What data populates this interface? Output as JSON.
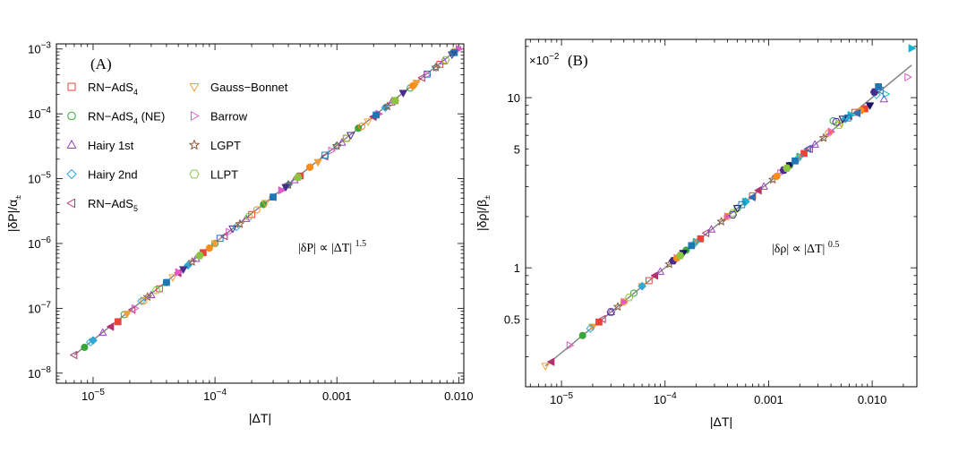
{
  "chart_data": [
    {
      "type": "scatter",
      "panel_label": "(A)",
      "xlabel": "|ΔT|",
      "ylabel": "|δP|/α±",
      "xscale": "log",
      "yscale": "log",
      "xlim": [
        5e-06,
        0.011
      ],
      "ylim": [
        7e-09,
        0.0012
      ],
      "x_ticks": [
        {
          "v": 1e-05,
          "b": "10",
          "e": "−5"
        },
        {
          "v": 0.0001,
          "b": "10",
          "e": "−4"
        },
        {
          "v": 0.001,
          "b": "0.001",
          "e": ""
        },
        {
          "v": 0.01,
          "b": "0.010",
          "e": ""
        }
      ],
      "y_ticks": [
        {
          "v": 1e-08,
          "b": "10",
          "e": "−8"
        },
        {
          "v": 1e-07,
          "b": "10",
          "e": "−7"
        },
        {
          "v": 1e-06,
          "b": "10",
          "e": "−6"
        },
        {
          "v": 1e-05,
          "b": "10",
          "e": "−5"
        },
        {
          "v": 0.0001,
          "b": "10",
          "e": "−4"
        },
        {
          "v": 0.001,
          "b": "10",
          "e": "−3"
        }
      ],
      "annotation": {
        "a": "|δP| ∝ |ΔT|",
        "e": "1.5"
      },
      "fit": {
        "exponent": 1.5,
        "x_start": 7e-06,
        "y_start": 1.9e-08,
        "x_end": 0.0105,
        "color": "#7f7f7f"
      },
      "legend": {
        "placement": "top-left",
        "entries": [
          {
            "label": "RN−AdS",
            "sub": "4",
            "suffix": "",
            "marker": "square",
            "color": "#e8443a"
          },
          {
            "label": "RN−AdS",
            "sub": "4",
            "suffix": " (NE)",
            "marker": "circle",
            "color": "#3aa63a"
          },
          {
            "label": "Hairy 1st",
            "sub": "",
            "suffix": "",
            "marker": "triangle-up",
            "color": "#9b3fc4"
          },
          {
            "label": "Hairy 2nd",
            "sub": "",
            "suffix": "",
            "marker": "diamond",
            "color": "#2fa8d8"
          },
          {
            "label": "RN−AdS",
            "sub": "5",
            "suffix": "",
            "marker": "triangle-left",
            "color": "#b3306b"
          },
          {
            "label": "Gauss−Bonnet",
            "sub": "",
            "suffix": "",
            "marker": "triangle-down",
            "color": "#f0a03a"
          },
          {
            "label": "Barrow",
            "sub": "",
            "suffix": "",
            "marker": "triangle-right",
            "color": "#e05ac8"
          },
          {
            "label": "LGPT",
            "sub": "",
            "suffix": "",
            "marker": "star",
            "color": "#8a5a3c"
          },
          {
            "label": "LLPT",
            "sub": "",
            "suffix": "",
            "marker": "hexagon",
            "color": "#8cc63f"
          }
        ]
      },
      "series": [
        {
          "marker": "triangle-left",
          "color": "#b3306b",
          "x": [
            7e-06,
            1.4e-05,
            2.1e-05,
            5e-05,
            0.00012,
            0.0003,
            0.0008,
            0.002,
            0.005
          ],
          "y": [
            1.9e-08,
            5.2e-08,
            9.5e-08,
            3.5e-07,
            1.3e-06,
            5.2e-06,
            2.2e-05,
            9e-05,
            0.00036
          ]
        },
        {
          "marker": "circle",
          "color": "#3aa63a",
          "x": [
            8.5e-06,
            1.8e-05,
            4e-05,
            0.0001,
            0.00025,
            0.0006,
            0.0015,
            0.004,
            0.009
          ],
          "y": [
            2.5e-08,
            8e-08,
            2.5e-07,
            1e-06,
            4e-06,
            1.5e-05,
            6e-05,
            0.00025,
            0.00088
          ]
        },
        {
          "marker": "diamond",
          "color": "#2fa8d8",
          "x": [
            9.5e-06,
            1e-05,
            2.5e-05,
            6e-05,
            0.00015,
            0.0004,
            0.001,
            0.0025,
            0.0065
          ],
          "y": [
            3e-08,
            3.2e-08,
            1.3e-07,
            4.6e-07,
            1.8e-06,
            8.1e-06,
            3.2e-05,
            0.000125,
            0.00052
          ]
        },
        {
          "marker": "square",
          "color": "#e8443a",
          "x": [
            1.6e-05,
            3.5e-05,
            8e-05,
            0.0002,
            0.0005,
            0.0012,
            0.003,
            0.007
          ],
          "y": [
            6.2e-08,
            2e-07,
            7.2e-07,
            2.8e-06,
            1.1e-05,
            4.2e-05,
            0.00016,
            0.00058
          ]
        },
        {
          "marker": "triangle-up",
          "color": "#9b3fc4",
          "x": [
            1.2e-05,
            3e-05,
            7e-05,
            0.00018,
            0.00045,
            0.0011,
            0.0028,
            0.0075
          ],
          "y": [
            4.2e-08,
            1.6e-07,
            5.8e-07,
            2.4e-06,
            9.5e-06,
            3.6e-05,
            0.00015,
            0.00065
          ]
        },
        {
          "marker": "triangle-down",
          "color": "#f0a03a",
          "x": [
            1.9e-05,
            4.5e-05,
            0.0001,
            0.00026,
            0.0007,
            0.0018,
            0.0045,
            0.0095
          ],
          "y": [
            8.2e-08,
            3e-07,
            1e-06,
            4.2e-06,
            1.8e-05,
            7.6e-05,
            0.0003,
            0.00093
          ]
        },
        {
          "marker": "triangle-right",
          "color": "#e05ac8",
          "x": [
            2.2e-05,
            5e-05,
            0.00013,
            0.00035,
            0.0009,
            0.0022,
            0.0055,
            0.01
          ],
          "y": [
            1e-07,
            3.6e-07,
            1.5e-06,
            6.6e-06,
            2.7e-05,
            0.0001,
            0.0004,
            0.001
          ]
        },
        {
          "marker": "star",
          "color": "#8a5a3c",
          "x": [
            2.8e-05,
            6.5e-05,
            0.00016,
            0.0004,
            0.001,
            0.0026,
            0.0065
          ],
          "y": [
            1.5e-07,
            5.2e-07,
            2e-06,
            8e-06,
            3.2e-05,
            0.00013,
            0.00052
          ]
        },
        {
          "marker": "hexagon",
          "color": "#8cc63f",
          "x": [
            3.3e-05,
            7.5e-05,
            0.00019,
            0.00048,
            0.0012,
            0.003,
            0.0078
          ],
          "y": [
            1.9e-07,
            6.5e-07,
            2.6e-06,
            1.05e-05,
            4.2e-05,
            0.00016,
            0.00068
          ]
        },
        {
          "marker": "square",
          "color": "#1f77b4",
          "x": [
            4e-05,
            0.00011,
            0.0003,
            0.0008,
            0.0021,
            0.0055,
            0.0092
          ],
          "y": [
            2.5e-07,
            1.2e-06,
            5.2e-06,
            2.3e-05,
            9.6e-05,
            0.00041,
            0.00088
          ]
        },
        {
          "marker": "circle",
          "color": "#ff8c1a",
          "x": [
            2.6e-05,
            9e-05,
            0.00022,
            0.0006,
            0.0016,
            0.0042
          ],
          "y": [
            1.3e-07,
            8.5e-07,
            3.3e-06,
            1.5e-05,
            6.4e-05,
            0.00027
          ]
        },
        {
          "marker": "triangle-down",
          "color": "#4a2c8f",
          "x": [
            5.5e-05,
            0.00014,
            0.00038,
            0.0013,
            0.0035,
            0.0088
          ],
          "y": [
            4e-07,
            1.7e-06,
            7.4e-06,
            4.7e-05,
            0.00021,
            0.00082
          ]
        }
      ]
    },
    {
      "type": "scatter",
      "panel_label": "(B)",
      "scale_note": {
        "a": "×10",
        "e": "−2"
      },
      "xlabel": "|ΔT|",
      "ylabel": "|δρ|/β±",
      "xscale": "log",
      "yscale": "log",
      "xlim": [
        4.5e-06,
        0.027
      ],
      "ylim": [
        0.2,
        22
      ],
      "x_ticks": [
        {
          "v": 1e-05,
          "b": "10",
          "e": "−5"
        },
        {
          "v": 0.0001,
          "b": "10",
          "e": "−4"
        },
        {
          "v": 0.001,
          "b": "0.001",
          "e": ""
        },
        {
          "v": 0.01,
          "b": "0.010",
          "e": ""
        }
      ],
      "y_ticks": [
        {
          "v": 0.5,
          "b": "0.5",
          "e": ""
        },
        {
          "v": 1,
          "b": "1",
          "e": ""
        },
        {
          "v": 5,
          "b": "5",
          "e": ""
        },
        {
          "v": 10,
          "b": "10",
          "e": ""
        }
      ],
      "annotation": {
        "a": "|δρ| ∝ |ΔT|",
        "e": "0.5"
      },
      "fit": {
        "exponent": 0.5,
        "x_start": 7e-06,
        "y_start": 0.265,
        "x_end": 0.024,
        "color": "#7f7f7f"
      },
      "series": [
        {
          "marker": "triangle-down",
          "color": "#f0a03a",
          "x": [
            7e-06,
            2e-05,
            6e-05,
            0.0002,
            0.0006,
            0.002,
            0.005
          ],
          "y": [
            0.265,
            0.45,
            0.78,
            1.42,
            2.45,
            4.5,
            7.1
          ]
        },
        {
          "marker": "triangle-left",
          "color": "#b3306b",
          "x": [
            8e-06,
            2.5e-05,
            8e-05,
            0.00025,
            0.0008,
            0.0025,
            0.006
          ],
          "y": [
            0.28,
            0.5,
            0.9,
            1.6,
            2.85,
            5.0,
            7.8
          ]
        },
        {
          "marker": "triangle-right",
          "color": "#e05ac8",
          "x": [
            1.2e-05,
            4e-05,
            0.00013,
            0.0004,
            0.0013,
            0.004,
            0.022
          ],
          "y": [
            0.35,
            0.63,
            1.14,
            2.0,
            3.6,
            6.3,
            13.2
          ]
        },
        {
          "marker": "circle",
          "color": "#3aa63a",
          "x": [
            1.6e-05,
            5e-05,
            0.00016,
            0.0005,
            0.0016,
            0.0042
          ],
          "y": [
            0.4,
            0.71,
            1.27,
            2.24,
            4.0,
            7.3
          ]
        },
        {
          "marker": "diamond",
          "color": "#2fa8d8",
          "x": [
            1.9e-05,
            6e-05,
            0.00019,
            0.0006,
            0.0019,
            0.0055,
            0.011
          ],
          "y": [
            0.44,
            0.78,
            1.38,
            2.45,
            4.36,
            7.5,
            10.4
          ]
        },
        {
          "marker": "square",
          "color": "#e8443a",
          "x": [
            2.3e-05,
            7e-05,
            0.00022,
            0.0007,
            0.0022,
            0.0068,
            0.0085
          ],
          "y": [
            0.48,
            0.84,
            1.48,
            2.65,
            4.7,
            8.2,
            8.6
          ]
        },
        {
          "marker": "triangle-up",
          "color": "#9b3fc4",
          "x": [
            3e-05,
            9e-05,
            0.00028,
            0.0009,
            0.0028,
            0.013
          ],
          "y": [
            0.55,
            0.95,
            1.68,
            3.0,
            5.3,
            9.8
          ]
        },
        {
          "marker": "star",
          "color": "#8a5a3c",
          "x": [
            3.5e-05,
            0.00011,
            0.00035,
            0.0011,
            0.0034
          ],
          "y": [
            0.59,
            1.05,
            1.87,
            3.3,
            5.8
          ]
        },
        {
          "marker": "hexagon",
          "color": "#4a2c8f",
          "x": [
            3e-05,
            0.00012,
            0.00045,
            0.0014,
            0.0045,
            0.0105
          ],
          "y": [
            0.55,
            1.1,
            2.05,
            3.75,
            7.2,
            10.8
          ]
        },
        {
          "marker": "triangle-down",
          "color": "#1b1464",
          "x": [
            0.00015,
            0.0005,
            0.0016,
            0.0052,
            0.0095
          ],
          "y": [
            1.22,
            2.24,
            4.0,
            7.5,
            9.0
          ]
        },
        {
          "marker": "triangle-right",
          "color": "#12b5cf",
          "x": [
            0.0002,
            0.0006,
            0.002,
            0.0062,
            0.0135,
            0.024
          ],
          "y": [
            1.42,
            2.45,
            4.5,
            7.9,
            10.5,
            19.5
          ]
        },
        {
          "marker": "square",
          "color": "#1f77b4",
          "x": [
            0.00018,
            0.00055,
            0.0018,
            0.0058,
            0.0115
          ],
          "y": [
            1.35,
            2.35,
            4.25,
            7.6,
            11.6
          ]
        },
        {
          "marker": "circle",
          "color": "#ff8c1a",
          "x": [
            4e-05,
            0.00013,
            0.0004,
            0.0012,
            0.0038,
            0.0078
          ],
          "y": [
            0.63,
            1.14,
            2.0,
            3.45,
            6.2,
            8.4
          ]
        },
        {
          "marker": "triangle-left",
          "color": "#2c6fbb",
          "x": [
            0.0007,
            0.0024,
            0.0072,
            0.012
          ],
          "y": [
            2.6,
            5.0,
            8.1,
            11.0
          ]
        },
        {
          "marker": "hexagon",
          "color": "#8cc63f",
          "x": [
            4.5e-05,
            0.00014,
            0.00045,
            0.0015,
            0.0048
          ],
          "y": [
            0.67,
            1.18,
            2.1,
            3.85,
            6.9
          ]
        }
      ]
    }
  ]
}
